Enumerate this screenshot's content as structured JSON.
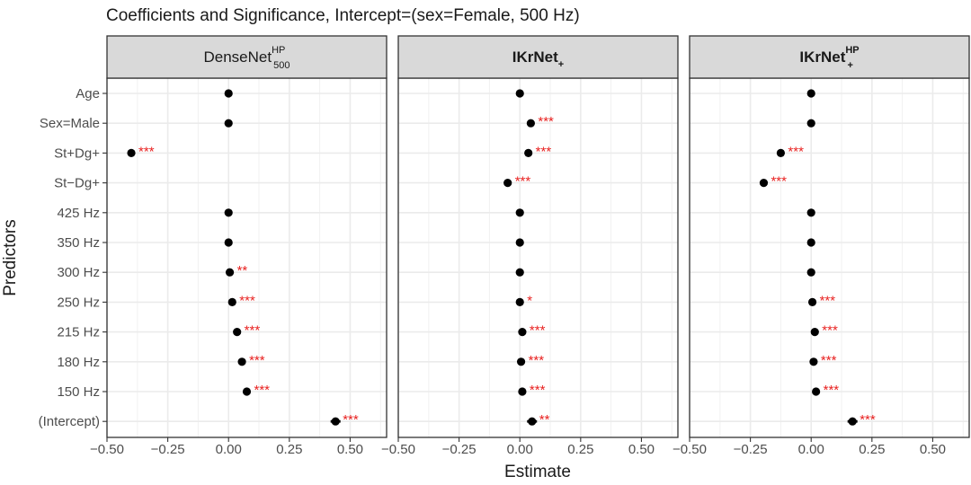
{
  "chart_data": {
    "type": "scatter",
    "title": "Coefficients and Significance, Intercept=(sex=Female, 500 Hz)",
    "xlabel": "Estimate",
    "ylabel": "Predictors",
    "xlim": [
      -0.5,
      0.65
    ],
    "xticks": [
      -0.5,
      -0.25,
      0.0,
      0.25,
      0.5
    ],
    "xtick_labels": [
      "−0.50",
      "−0.25",
      "0.00",
      "0.25",
      "0.50"
    ],
    "grid": true,
    "predictors": [
      "Age",
      "Sex=Male",
      "St+Dg+",
      "St−Dg+",
      "425 Hz",
      "350 Hz",
      "300 Hz",
      "250 Hz",
      "215 Hz",
      "180 Hz",
      "150 Hz",
      "(Intercept)"
    ],
    "panels": [
      {
        "name": "DenseNet",
        "sup": "HP",
        "sub": "500",
        "bold": false,
        "estimates": [
          0.0,
          0.0,
          -0.4,
          null,
          0.0,
          0.0,
          0.005,
          0.015,
          0.035,
          0.055,
          0.075,
          0.44
        ],
        "significance": [
          "",
          "",
          "***",
          "",
          "",
          "",
          "**",
          "***",
          "***",
          "***",
          "***",
          "***"
        ]
      },
      {
        "name": "IKrNet",
        "sup": "",
        "sub": "+",
        "bold": true,
        "estimates": [
          0.0,
          0.045,
          0.035,
          -0.05,
          0.0,
          0.0,
          0.0,
          0.0,
          0.01,
          0.005,
          0.01,
          0.05
        ],
        "significance": [
          "",
          "***",
          "***",
          "***",
          "",
          "",
          "",
          "*",
          "***",
          "***",
          "***",
          "**"
        ]
      },
      {
        "name": "IKrNet",
        "sup": "HP",
        "sub": "+",
        "bold": true,
        "estimates": [
          0.0,
          0.0,
          -0.125,
          -0.195,
          0.0,
          0.0,
          0.0,
          0.005,
          0.015,
          0.01,
          0.02,
          0.17
        ],
        "significance": [
          "",
          "",
          "***",
          "***",
          "",
          "",
          "",
          "***",
          "***",
          "***",
          "***",
          "***"
        ]
      }
    ]
  }
}
